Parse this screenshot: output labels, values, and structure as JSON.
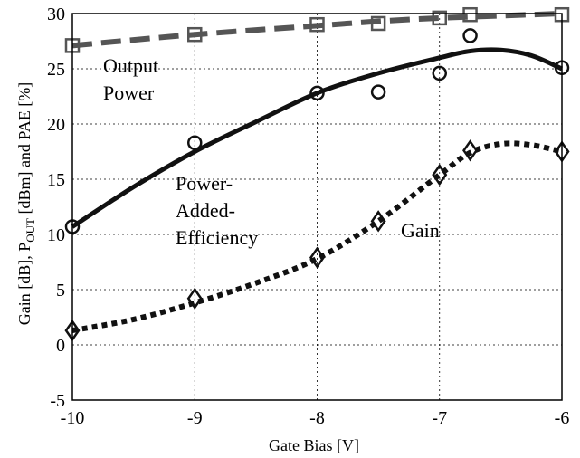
{
  "chart_data": {
    "type": "line",
    "xlabel": "Gate Bias [V]",
    "ylabel_parts": [
      "Gain [dB], P",
      "OUT",
      " [dBm] and PAE [%]"
    ],
    "xlim": [
      -10,
      -6
    ],
    "ylim": [
      -5,
      30
    ],
    "xticks": [
      -10,
      -9,
      -8,
      -7,
      -6
    ],
    "yticks": [
      -5,
      0,
      5,
      10,
      15,
      20,
      25,
      30
    ],
    "grid": true,
    "legend": "none",
    "annotations": [
      {
        "id": "output-power",
        "lines": [
          "Output",
          "Power"
        ]
      },
      {
        "id": "pae",
        "lines": [
          "Power-",
          "Added-",
          "Efficiency"
        ]
      },
      {
        "id": "gain",
        "lines": [
          "Gain"
        ]
      }
    ],
    "series": [
      {
        "id": "output-power",
        "marker": "square",
        "color": "#555555",
        "line_style": "dashed",
        "points": [
          [
            -10,
            27.1
          ],
          [
            -9,
            28.1
          ],
          [
            -8,
            29.0
          ],
          [
            -7.5,
            29.1
          ],
          [
            -7,
            29.6
          ],
          [
            -6.75,
            29.9
          ],
          [
            -6,
            29.9
          ]
        ],
        "curve": [
          [
            -10,
            27.1
          ],
          [
            -9,
            28.1
          ],
          [
            -8,
            28.9
          ],
          [
            -7.5,
            29.3
          ],
          [
            -7,
            29.6
          ],
          [
            -6.5,
            29.8
          ],
          [
            -6,
            30.0
          ]
        ]
      },
      {
        "id": "pae",
        "marker": "circle",
        "color": "#111111",
        "line_style": "solid",
        "points": [
          [
            -10,
            10.7
          ],
          [
            -9,
            18.3
          ],
          [
            -8,
            22.8
          ],
          [
            -7.5,
            22.9
          ],
          [
            -7,
            24.6
          ],
          [
            -6.75,
            28.0
          ],
          [
            -6,
            25.1
          ]
        ],
        "curve": [
          [
            -10,
            10.7
          ],
          [
            -9.5,
            14.3
          ],
          [
            -9,
            17.5
          ],
          [
            -8.5,
            20.2
          ],
          [
            -8,
            22.8
          ],
          [
            -7.5,
            24.6
          ],
          [
            -7,
            26.0
          ],
          [
            -6.75,
            26.6
          ],
          [
            -6.5,
            26.7
          ],
          [
            -6.25,
            26.2
          ],
          [
            -6,
            25.0
          ]
        ]
      },
      {
        "id": "gain",
        "marker": "diamond",
        "color": "#111111",
        "line_style": "dotted",
        "points": [
          [
            -10,
            1.3
          ],
          [
            -9,
            4.2
          ],
          [
            -8,
            7.9
          ],
          [
            -7.5,
            11.2
          ],
          [
            -7,
            15.4
          ],
          [
            -6.75,
            17.6
          ],
          [
            -6,
            17.5
          ]
        ],
        "curve": [
          [
            -10,
            1.3
          ],
          [
            -9.5,
            2.3
          ],
          [
            -9,
            3.8
          ],
          [
            -8.5,
            5.6
          ],
          [
            -8,
            7.8
          ],
          [
            -7.5,
            11.2
          ],
          [
            -7,
            15.4
          ],
          [
            -6.75,
            17.4
          ],
          [
            -6.5,
            18.2
          ],
          [
            -6.25,
            18.1
          ],
          [
            -6,
            17.5
          ]
        ]
      }
    ]
  }
}
